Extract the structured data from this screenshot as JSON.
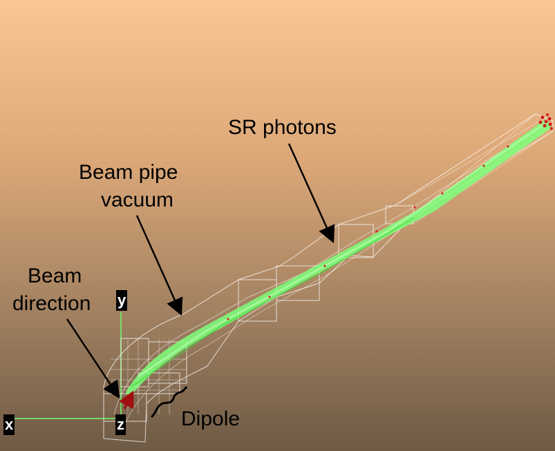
{
  "labels": {
    "sr_photons": "SR photons",
    "beam_pipe_line1": "Beam pipe",
    "beam_pipe_line2": "vacuum",
    "beam_direction_line1": "Beam",
    "beam_direction_line2": "direction",
    "dipole": "Dipole"
  },
  "axes": {
    "x": "x",
    "y": "y",
    "z": "z"
  },
  "colors": {
    "background_top": "#f9c795",
    "background_bottom": "#6e5a45",
    "photon_fan": "#7dff7a",
    "photon_hits": "#d11a1a",
    "wireframe": "#ffffff",
    "axis_line": "#6dff6d",
    "beam_arrow": "#a01010"
  }
}
